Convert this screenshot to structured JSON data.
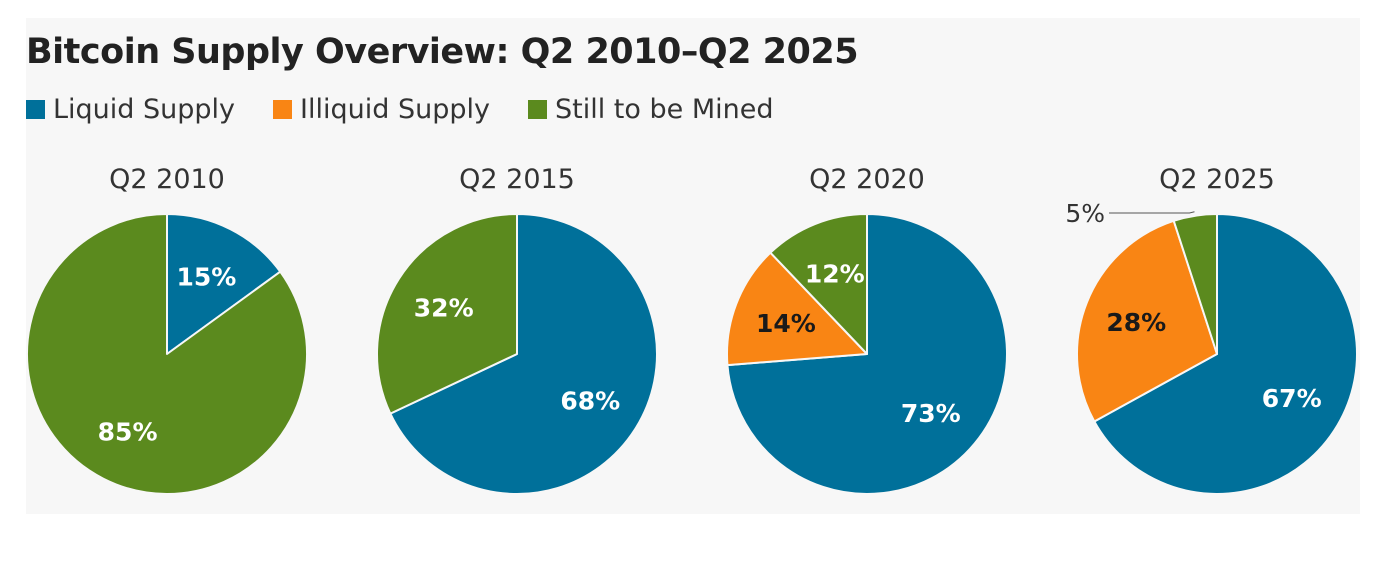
{
  "title": "Bitcoin Supply Overview: Q2 2010–Q2 2025",
  "colors": {
    "liquid": "#00709a",
    "illiquid": "#f98514",
    "mined": "#5b8a1e"
  },
  "legend": [
    {
      "label": "Liquid Supply",
      "color": "#00709a"
    },
    {
      "label": "Illiquid Supply",
      "color": "#f98514"
    },
    {
      "label": "Still to be Mined",
      "color": "#5b8a1e"
    }
  ],
  "chart_data": [
    {
      "type": "pie",
      "title": "Q2 2010",
      "slices": [
        {
          "category": "Liquid Supply",
          "value": 15,
          "label": "15%"
        },
        {
          "category": "Illiquid Supply",
          "value": 0,
          "label": ""
        },
        {
          "category": "Still to be Mined",
          "value": 85,
          "label": "85%"
        }
      ]
    },
    {
      "type": "pie",
      "title": "Q2 2015",
      "slices": [
        {
          "category": "Liquid Supply",
          "value": 68,
          "label": "68%"
        },
        {
          "category": "Illiquid Supply",
          "value": 0,
          "label": ""
        },
        {
          "category": "Still to be Mined",
          "value": 32,
          "label": "32%"
        }
      ]
    },
    {
      "type": "pie",
      "title": "Q2 2020",
      "slices": [
        {
          "category": "Liquid Supply",
          "value": 73,
          "label": "73%"
        },
        {
          "category": "Illiquid Supply",
          "value": 14,
          "label": "14%"
        },
        {
          "category": "Still to be Mined",
          "value": 12,
          "label": "12%"
        }
      ]
    },
    {
      "type": "pie",
      "title": "Q2 2025",
      "slices": [
        {
          "category": "Liquid Supply",
          "value": 67,
          "label": "67%"
        },
        {
          "category": "Illiquid Supply",
          "value": 28,
          "label": "28%"
        },
        {
          "category": "Still to be Mined",
          "value": 5,
          "label": "5%"
        }
      ]
    }
  ]
}
